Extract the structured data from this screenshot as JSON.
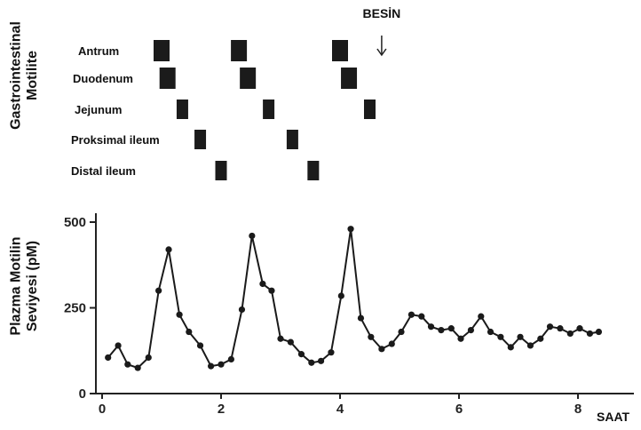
{
  "chart_data": [
    {
      "type": "timeline",
      "ylabel_lines": [
        "Gastrointestinal",
        "Motilite"
      ],
      "annotation": "BESİN",
      "rows": [
        {
          "label": "Antrum",
          "activity": [
            1.0,
            2.3,
            4.0
          ]
        },
        {
          "label": "Duodenum",
          "activity": [
            1.1,
            2.45,
            4.15
          ]
        },
        {
          "label": "Jejunum",
          "activity": [
            1.35,
            2.8,
            4.5
          ]
        },
        {
          "label": "Proksimal ileum",
          "activity": [
            1.65,
            3.2
          ]
        },
        {
          "label": "Distal ileum",
          "activity": [
            2.0,
            3.55
          ]
        }
      ],
      "food_time": 4.7
    },
    {
      "type": "line",
      "ylabel_lines": [
        "Plazma Motilin",
        "Seviyesi (pM)"
      ],
      "xlabel": "SAAT",
      "xlim": [
        0,
        8.5
      ],
      "ylim": [
        0,
        500
      ],
      "xticks": [
        0,
        2,
        4,
        6,
        8
      ],
      "yticks": [
        0,
        250,
        500
      ],
      "series": [
        {
          "x": [
            0.1,
            0.27,
            0.43,
            0.6,
            0.78,
            0.95,
            1.12,
            1.3,
            1.46,
            1.65,
            1.83,
            2.0,
            2.17,
            2.35,
            2.52,
            2.7,
            2.85,
            3.0,
            3.17,
            3.35,
            3.52,
            3.68,
            3.85,
            4.02,
            4.18,
            4.35,
            4.52,
            4.7,
            4.87,
            5.03,
            5.2,
            5.37,
            5.53,
            5.7,
            5.87,
            6.03,
            6.2,
            6.37,
            6.53,
            6.7,
            6.87,
            7.03,
            7.2,
            7.37,
            7.53,
            7.7,
            7.87,
            8.03,
            8.2,
            8.35
          ],
          "y": [
            105,
            140,
            85,
            75,
            105,
            300,
            420,
            230,
            180,
            140,
            80,
            85,
            100,
            245,
            460,
            320,
            300,
            160,
            150,
            115,
            90,
            95,
            120,
            285,
            480,
            220,
            165,
            130,
            145,
            180,
            230,
            225,
            195,
            185,
            190,
            160,
            185,
            225,
            180,
            165,
            135,
            165,
            140,
            160,
            195,
            190,
            175,
            190,
            175,
            180
          ]
        }
      ]
    }
  ]
}
